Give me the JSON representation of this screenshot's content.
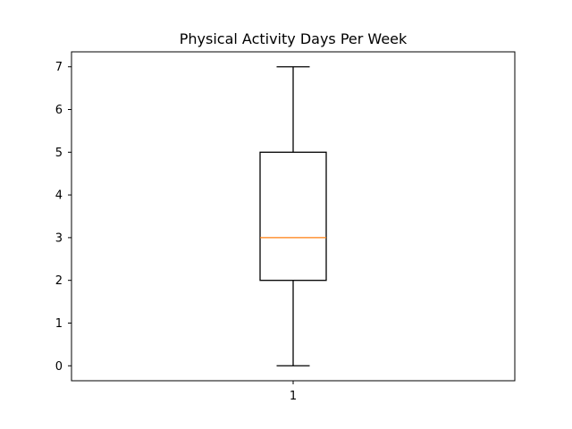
{
  "chart_data": {
    "type": "boxplot",
    "title": "Physical Activity Days Per Week",
    "xlabel": "",
    "ylabel": "",
    "categories": [
      "1"
    ],
    "ylim": [
      -0.35,
      7.35
    ],
    "yticks": [
      0,
      1,
      2,
      3,
      4,
      5,
      6,
      7
    ],
    "series": [
      {
        "stats": {
          "whisker_low": 0,
          "q1": 2,
          "median": 3,
          "q3": 5,
          "whisker_high": 7
        }
      }
    ],
    "grid": false,
    "legend": "none",
    "colors": {
      "box": "#000000",
      "median": "#ff7f0e",
      "whisker": "#000000",
      "axes": "#000000"
    }
  }
}
